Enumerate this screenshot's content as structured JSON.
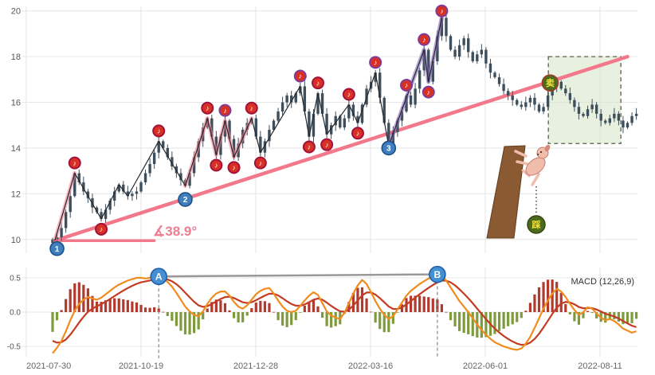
{
  "colors": {
    "candle": "#3d4f5c",
    "trendline": "#f2798b",
    "baseline": "#f2798b",
    "angle_text": "#ee7d8f",
    "grid": "#e6e6e6",
    "axis_text": "#555555",
    "wave_point_fill": "#3f7fbf",
    "wave_point_ring": "#1e4f86",
    "pivot_fill": "#d93025",
    "pivot_ring_red": "#a1123a",
    "pivot_ring_purple": "#7d3c98",
    "sell_fill": "#4e6b1d",
    "sell_text": "#f2e23c",
    "sell_ring": "#a03a2a",
    "box_fill": "rgba(214,228,196,0.55)",
    "box_border": "#55604a",
    "cliff": "#8a5a33",
    "cliff_edge": "#5f3d1e",
    "dog_body": "#f0bcab",
    "dog_outline": "#c67f6d",
    "dif_line": "#f08c1e",
    "dea_line": "#c23b22",
    "hist_pos": "#b03a2e",
    "hist_neg": "#7d9b3d",
    "ab_fill": "#4490d2",
    "ab_ring": "#1f5fa8",
    "ab_connector": "#999999",
    "dashed_guide": "#888888"
  },
  "chart_data": [
    {
      "type": "candlestick",
      "title": "",
      "ylabel": "",
      "ylim": [
        9.4,
        20.2
      ],
      "y_ticks": [
        20,
        18,
        16,
        14,
        12,
        10
      ],
      "x_ticks": [
        "2021-07-30",
        "2021-10-19",
        "2021-12-28",
        "2022-03-16",
        "2022-06-01",
        "2022-08-11"
      ],
      "closes": [
        10.0,
        10.1,
        10.5,
        11.2,
        11.9,
        12.9,
        12.5,
        12.1,
        11.8,
        11.4,
        11.2,
        10.9,
        11.3,
        11.7,
        12.1,
        12.4,
        12.1,
        11.9,
        12.0,
        12.1,
        12.5,
        12.9,
        13.3,
        13.8,
        14.3,
        14.0,
        13.6,
        13.2,
        12.9,
        12.6,
        12.35,
        12.9,
        13.6,
        14.3,
        14.9,
        15.3,
        14.5,
        13.7,
        14.5,
        15.2,
        14.4,
        13.6,
        14.2,
        14.8,
        15.1,
        15.3,
        14.5,
        13.8,
        14.3,
        14.8,
        15.2,
        15.6,
        16.0,
        16.3,
        16.0,
        16.4,
        16.7,
        15.6,
        14.5,
        15.5,
        16.4,
        15.5,
        14.6,
        15.0,
        15.4,
        14.9,
        15.3,
        15.9,
        15.4,
        15.1,
        15.9,
        16.6,
        16.9,
        17.3,
        16.2,
        15.1,
        14.1,
        14.7,
        15.2,
        15.6,
        16.3,
        15.9,
        16.6,
        17.4,
        18.3,
        16.9,
        17.8,
        18.9,
        19.7,
        18.9,
        18.3,
        18.0,
        18.5,
        18.8,
        18.2,
        17.8,
        18.1,
        18.3,
        17.7,
        17.3,
        17.1,
        16.8,
        16.5,
        16.3,
        16.1,
        15.9,
        15.8,
        16.0,
        16.2,
        15.9,
        15.6,
        15.8,
        16.3,
        16.7,
        16.9,
        16.6,
        16.4,
        16.1,
        15.8,
        15.5,
        15.4,
        15.7,
        15.9,
        15.5,
        15.2,
        15.1,
        15.3,
        15.5,
        15.2,
        14.9,
        15.1,
        15.4,
        15.5
      ],
      "trendline": {
        "from_idx": 0.5,
        "from_val": 9.95,
        "to_idx": 130,
        "to_val": 18.0
      },
      "baseline": {
        "from_idx": 0.5,
        "to_idx": 23,
        "val": 9.95
      },
      "angle_label": "∡38.9°",
      "wave_points": [
        {
          "label": "1",
          "idx": 1,
          "val": 9.6
        },
        {
          "label": "2",
          "idx": 30,
          "val": 11.75
        },
        {
          "label": "3",
          "idx": 76,
          "val": 14.0
        }
      ],
      "pivot_glyph": "♪",
      "pivot_markers": [
        {
          "idx": 5,
          "val": 13.35,
          "ring": "red"
        },
        {
          "idx": 11,
          "val": 10.45,
          "ring": "red"
        },
        {
          "idx": 24,
          "val": 14.75,
          "ring": "red"
        },
        {
          "idx": 35,
          "val": 15.75,
          "ring": "red"
        },
        {
          "idx": 37,
          "val": 13.25,
          "ring": "red"
        },
        {
          "idx": 39,
          "val": 15.65,
          "ring": "purple"
        },
        {
          "idx": 41,
          "val": 13.15,
          "ring": "red"
        },
        {
          "idx": 45,
          "val": 15.75,
          "ring": "red"
        },
        {
          "idx": 47,
          "val": 13.35,
          "ring": "red"
        },
        {
          "idx": 56,
          "val": 17.15,
          "ring": "purple"
        },
        {
          "idx": 58,
          "val": 14.05,
          "ring": "red"
        },
        {
          "idx": 60,
          "val": 16.85,
          "ring": "red"
        },
        {
          "idx": 62,
          "val": 14.15,
          "ring": "red"
        },
        {
          "idx": 67,
          "val": 16.35,
          "ring": "red"
        },
        {
          "idx": 69,
          "val": 14.65,
          "ring": "red"
        },
        {
          "idx": 73,
          "val": 17.75,
          "ring": "purple"
        },
        {
          "idx": 80,
          "val": 16.75,
          "ring": "purple"
        },
        {
          "idx": 84,
          "val": 18.75,
          "ring": "purple"
        },
        {
          "idx": 85,
          "val": 16.45,
          "ring": "purple"
        },
        {
          "idx": 88,
          "val": 20.0,
          "ring": "purple"
        }
      ],
      "wave_path": [
        [
          0.5,
          9.95
        ],
        [
          5,
          12.9
        ],
        [
          11,
          10.9
        ],
        [
          15,
          12.4
        ],
        [
          17,
          11.9
        ],
        [
          24,
          14.3
        ],
        [
          30,
          12.35
        ],
        [
          35,
          15.3
        ],
        [
          37,
          13.7
        ],
        [
          39,
          15.2
        ],
        [
          41,
          13.6
        ],
        [
          45,
          15.3
        ],
        [
          47,
          13.8
        ],
        [
          56,
          16.7
        ],
        [
          58,
          14.5
        ],
        [
          60,
          16.4
        ],
        [
          62,
          14.6
        ],
        [
          67,
          15.9
        ],
        [
          69,
          15.1
        ],
        [
          73,
          17.3
        ],
        [
          76,
          14.1
        ],
        [
          84,
          18.3
        ],
        [
          85,
          16.9
        ],
        [
          88,
          19.7
        ]
      ],
      "overlays": [
        {
          "color": "rgba(242,125,143,0.55)",
          "width": 5,
          "points": [
            [
              0.5,
              9.95
            ],
            [
              5,
              12.9
            ]
          ]
        },
        {
          "color": "rgba(242,125,143,0.55)",
          "width": 5,
          "points": [
            [
              30,
              12.35
            ],
            [
              35,
              15.3
            ],
            [
              37,
              13.7
            ],
            [
              39,
              15.2
            ],
            [
              41,
              13.6
            ],
            [
              45,
              15.3
            ]
          ]
        },
        {
          "color": "rgba(128,100,180,0.6)",
          "width": 5,
          "points": [
            [
              76,
              14.1
            ],
            [
              84,
              18.3
            ],
            [
              85,
              16.9
            ],
            [
              88,
              19.7
            ]
          ]
        }
      ],
      "sell_marker": {
        "label": "卖",
        "idx": 112.5,
        "val": 16.85
      },
      "step_marker": {
        "label": "踩"
      },
      "box": {
        "from_idx": 112.1,
        "to_idx": 128.5,
        "top_val": 18.0,
        "bottom_val": 14.2
      }
    },
    {
      "type": "macd",
      "label": "MACD (12,26,9)",
      "ylim": [
        -0.65,
        0.65
      ],
      "y_ticks": [
        0.5,
        0.0,
        -0.5
      ],
      "dif": [
        -0.6,
        -0.52,
        -0.42,
        -0.28,
        -0.12,
        0.02,
        0.12,
        0.18,
        0.22,
        0.2,
        0.18,
        0.21,
        0.26,
        0.31,
        0.36,
        0.4,
        0.43,
        0.46,
        0.48,
        0.5,
        0.5,
        0.49,
        0.5,
        0.52,
        0.52,
        0.49,
        0.44,
        0.37,
        0.28,
        0.18,
        0.08,
        0.01,
        -0.04,
        -0.06,
        0.01,
        0.12,
        0.21,
        0.27,
        0.3,
        0.3,
        0.24,
        0.15,
        0.08,
        0.05,
        0.1,
        0.18,
        0.26,
        0.31,
        0.34,
        0.35,
        0.27,
        0.17,
        0.08,
        0.02,
        0.0,
        0.02,
        0.09,
        0.17,
        0.24,
        0.29,
        0.25,
        0.13,
        0.01,
        -0.05,
        -0.08,
        -0.1,
        -0.01,
        0.13,
        0.27,
        0.39,
        0.47,
        0.41,
        0.29,
        0.16,
        0.05,
        -0.04,
        -0.1,
        -0.06,
        0.04,
        0.14,
        0.24,
        0.31,
        0.36,
        0.41,
        0.45,
        0.49,
        0.52,
        0.55,
        0.53,
        0.46,
        0.36,
        0.26,
        0.16,
        0.08,
        0.0,
        -0.09,
        -0.18,
        -0.26,
        -0.33,
        -0.39,
        -0.44,
        -0.47,
        -0.5,
        -0.52,
        -0.54,
        -0.55,
        -0.53,
        -0.46,
        -0.36,
        -0.23,
        -0.09,
        0.05,
        0.17,
        0.27,
        0.34,
        0.3,
        0.22,
        0.12,
        0.03,
        -0.04,
        0.0,
        0.07,
        0.05,
        -0.02,
        -0.08,
        -0.12,
        -0.1,
        -0.13,
        -0.18,
        -0.24,
        -0.27,
        -0.3,
        -0.28
      ],
      "ab_markers": [
        {
          "label": "A",
          "idx": 24
        },
        {
          "label": "B",
          "idx": 87
        }
      ]
    }
  ]
}
